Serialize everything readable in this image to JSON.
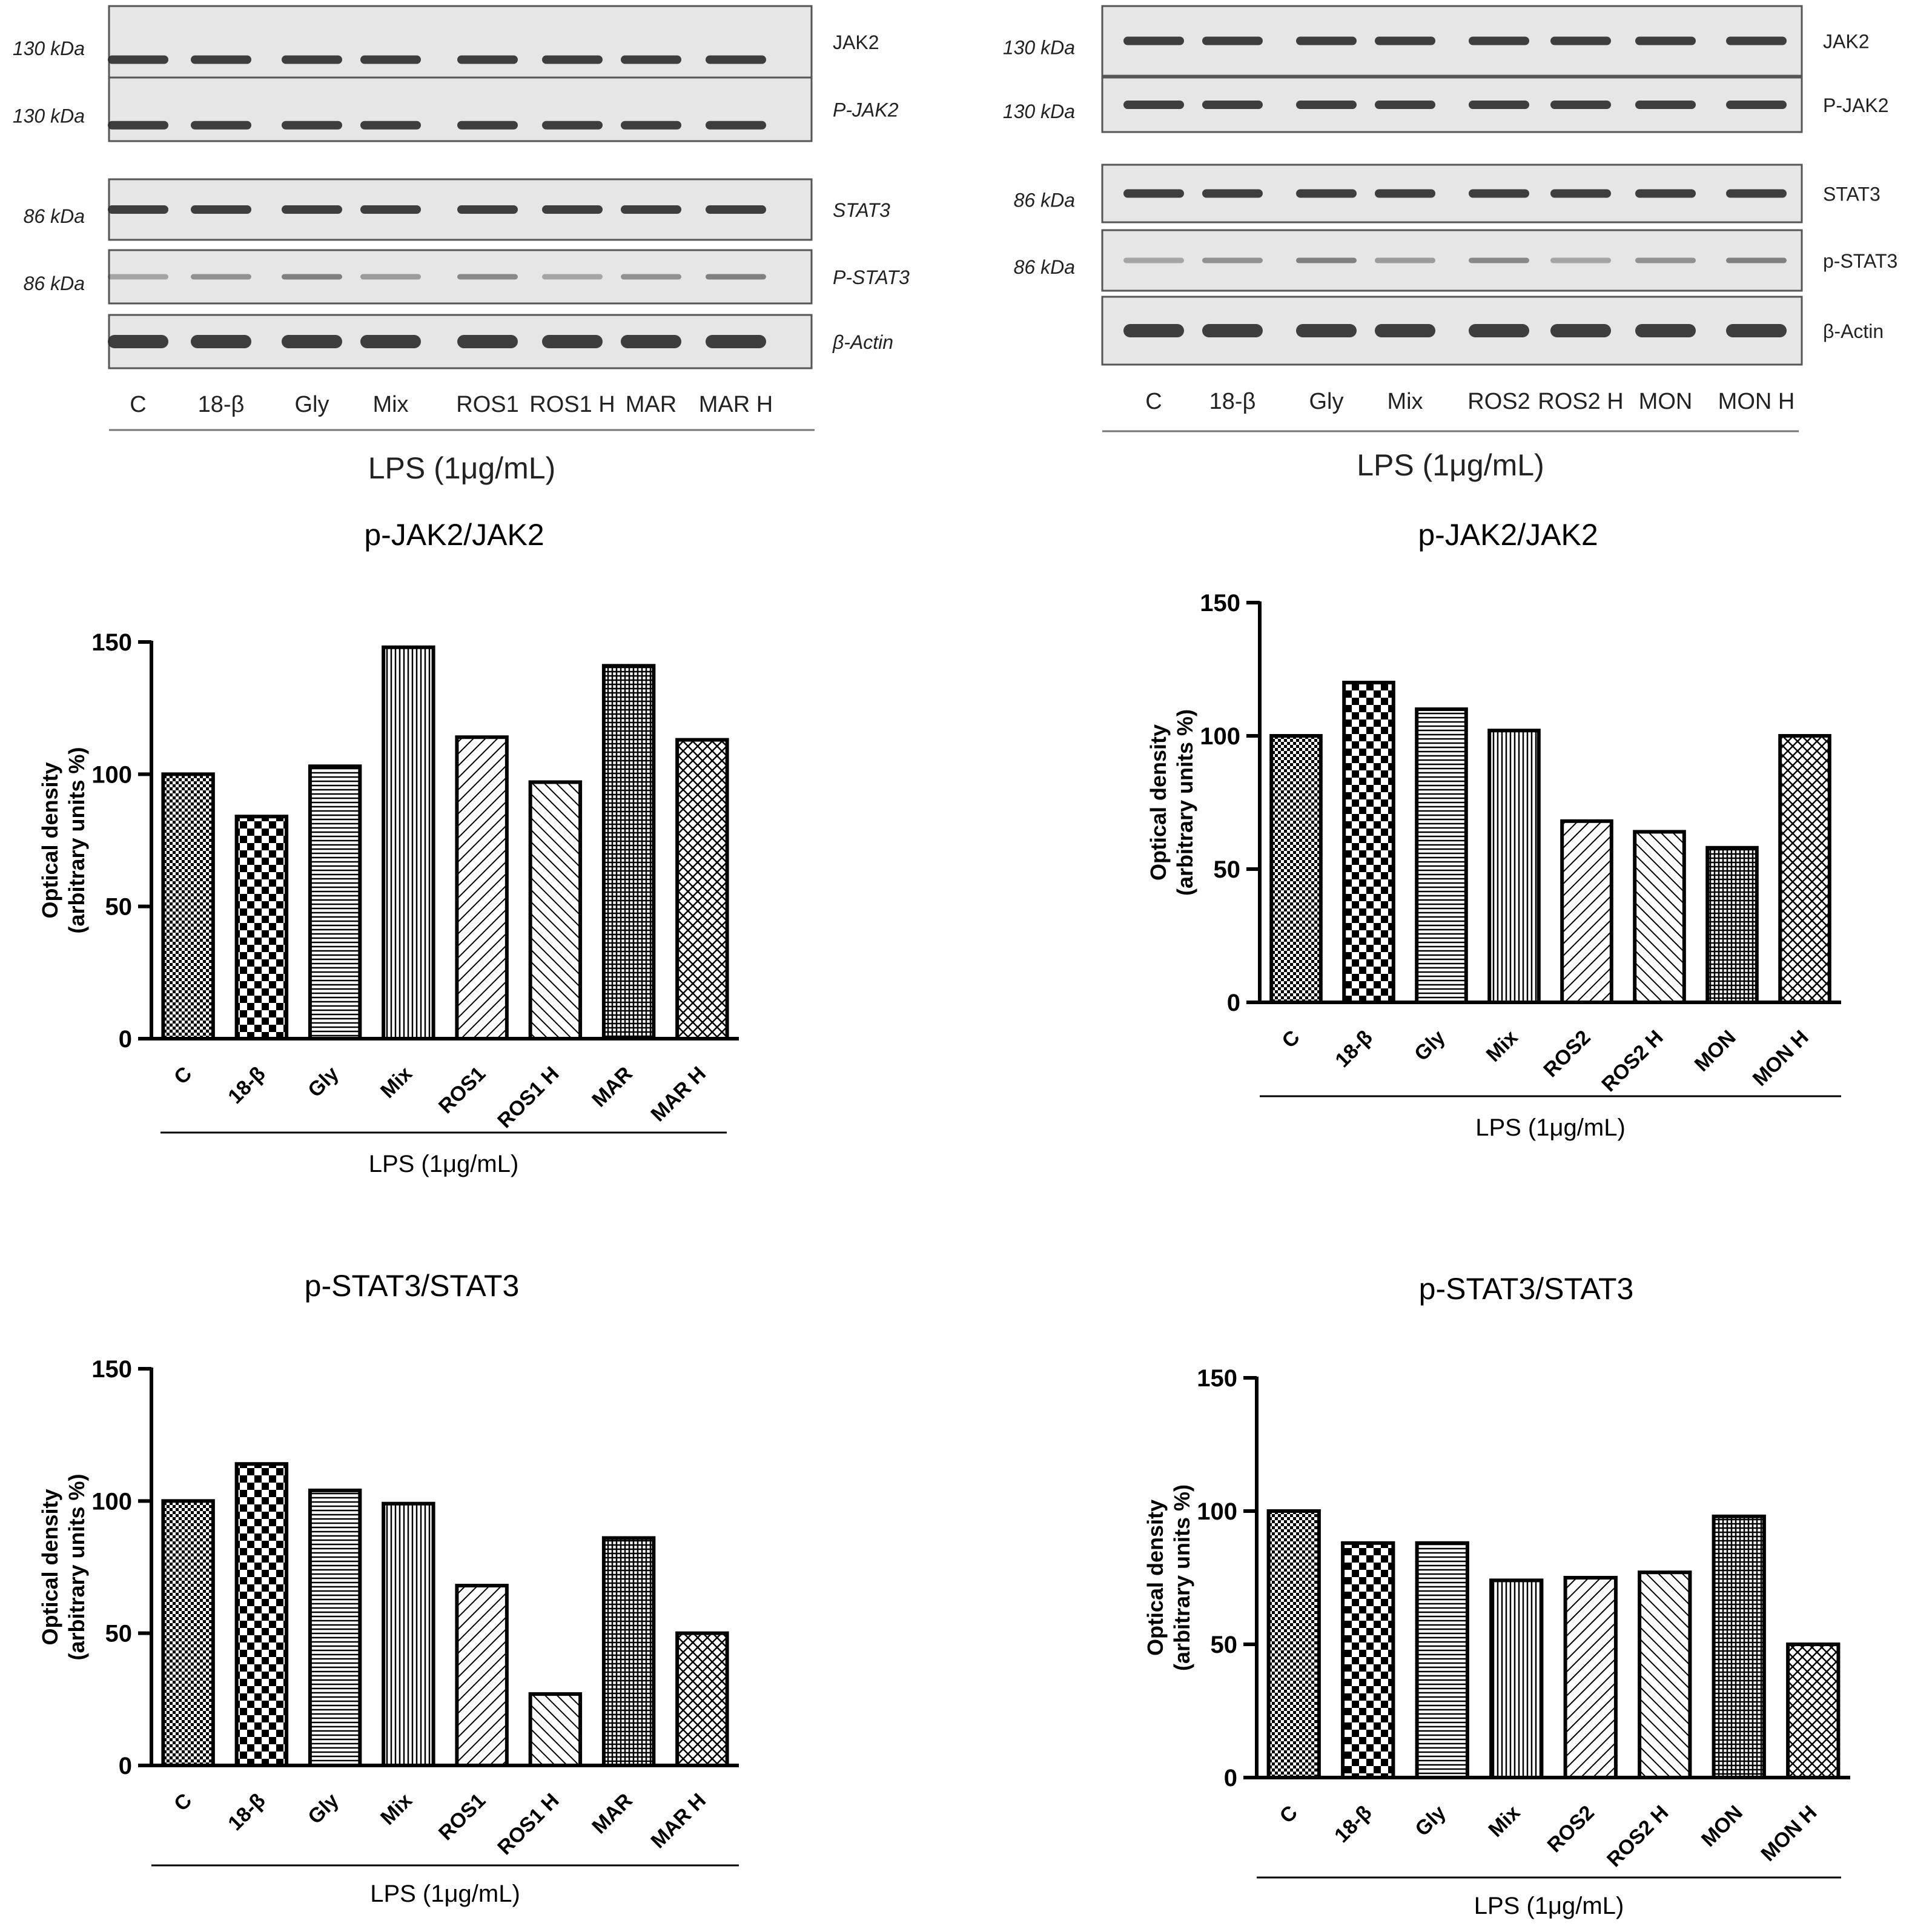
{
  "blot_panels": [
    {
      "lanes": [
        "C",
        "18-β",
        "Gly",
        "Mix",
        "ROS1",
        "ROS1 H",
        "MAR",
        "MAR H"
      ],
      "treatment": "LPS (1μg/mL)",
      "rows": [
        {
          "protein": "JAK2",
          "kda": "130 kDa"
        },
        {
          "protein": "P-JAK2",
          "kda": "130 kDa"
        },
        {
          "protein": "STAT3",
          "kda": "86 kDa"
        },
        {
          "protein": "P-STAT3",
          "kda": "86 kDa"
        },
        {
          "protein": "β-Actin",
          "kda": ""
        }
      ]
    },
    {
      "lanes": [
        "C",
        "18-β",
        "Gly",
        "Mix",
        "ROS2",
        "ROS2 H",
        "MON",
        "MON H"
      ],
      "treatment": "LPS (1μg/mL)",
      "rows": [
        {
          "protein": "JAK2",
          "kda": "130 kDa"
        },
        {
          "protein": "P-JAK2",
          "kda": "130 kDa"
        },
        {
          "protein": "STAT3",
          "kda": "86 kDa"
        },
        {
          "protein": "p-STAT3",
          "kda": "86 kDa"
        },
        {
          "protein": "β-Actin",
          "kda": ""
        }
      ]
    }
  ],
  "chart_data": [
    {
      "type": "bar",
      "title": "p-JAK2/JAK2",
      "categories": [
        "C",
        "18-β",
        "Gly",
        "Mix",
        "ROS1",
        "ROS1 H",
        "MAR",
        "MAR H"
      ],
      "values": [
        100,
        84,
        103,
        148,
        114,
        97,
        141,
        113
      ],
      "ylabel": [
        "Optical density",
        "(arbitrary units %)"
      ],
      "xlabel": "LPS (1μg/mL)",
      "ylim": [
        0,
        150
      ],
      "yticks": [
        0,
        50,
        100,
        150
      ]
    },
    {
      "type": "bar",
      "title": "p-JAK2/JAK2",
      "categories": [
        "C",
        "18-β",
        "Gly",
        "Mix",
        "ROS2",
        "ROS2 H",
        "MON",
        "MON H"
      ],
      "values": [
        100,
        120,
        110,
        102,
        68,
        64,
        58,
        100
      ],
      "ylabel": [
        "Optical density",
        "(arbitrary units %)"
      ],
      "xlabel": "LPS (1μg/mL)",
      "ylim": [
        0,
        150
      ],
      "yticks": [
        0,
        50,
        100,
        150
      ]
    },
    {
      "type": "bar",
      "title": "p-STAT3/STAT3",
      "categories": [
        "C",
        "18-β",
        "Gly",
        "Mix",
        "ROS1",
        "ROS1 H",
        "MAR",
        "MAR H"
      ],
      "values": [
        100,
        114,
        104,
        99,
        68,
        27,
        86,
        50
      ],
      "ylabel": [
        "Optical density",
        "(arbitrary units %)"
      ],
      "xlabel": "LPS (1μg/mL)",
      "ylim": [
        0,
        150
      ],
      "yticks": [
        0,
        50,
        100,
        150
      ]
    },
    {
      "type": "bar",
      "title": "p-STAT3/STAT3",
      "categories": [
        "C",
        "18-β",
        "Gly",
        "Mix",
        "ROS2",
        "ROS2 H",
        "MON",
        "MON H"
      ],
      "values": [
        100,
        88,
        88,
        74,
        75,
        77,
        98,
        50
      ],
      "ylabel": [
        "Optical density",
        "(arbitrary units %)"
      ],
      "xlabel": "LPS (1μg/mL)",
      "ylim": [
        0,
        150
      ],
      "yticks": [
        0,
        50,
        100,
        150
      ]
    }
  ],
  "colors": {
    "ink": "#000000",
    "blot_bg": "#e6e6e6",
    "band": "#2b2b2b",
    "muted_text": "#333333"
  }
}
